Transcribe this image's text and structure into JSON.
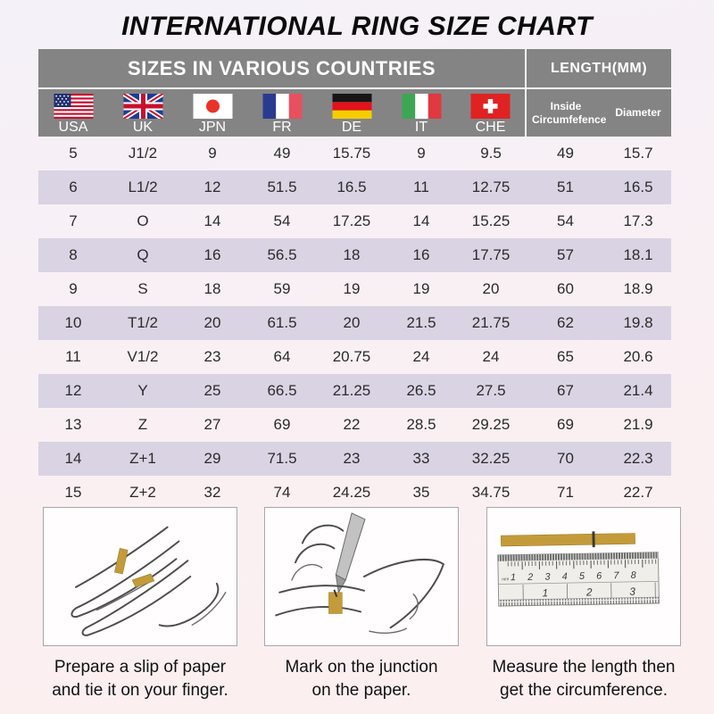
{
  "title": "INTERNATIONAL RING SIZE CHART",
  "table": {
    "section_countries": "SIZES IN VARIOUS COUNTRIES",
    "section_length": "LENGTH(MM)",
    "countries": [
      {
        "code": "USA",
        "flag": "usa"
      },
      {
        "code": "UK",
        "flag": "uk"
      },
      {
        "code": "JPN",
        "flag": "japan"
      },
      {
        "code": "FR",
        "flag": "france"
      },
      {
        "code": "DE",
        "flag": "germany"
      },
      {
        "code": "IT",
        "flag": "italy"
      },
      {
        "code": "CHE",
        "flag": "switzerland"
      }
    ],
    "length_cols": [
      "Inside Circumfefence",
      "Diameter"
    ]
  },
  "chart_data": {
    "type": "table",
    "title": "INTERNATIONAL RING SIZE CHART",
    "columns": [
      "USA",
      "UK",
      "JPN",
      "FR",
      "DE",
      "IT",
      "CHE",
      "Inside Circumfefence",
      "Diameter"
    ],
    "rows": [
      [
        "5",
        "J1/2",
        "9",
        "49",
        "15.75",
        "9",
        "9.5",
        "49",
        "15.7"
      ],
      [
        "6",
        "L1/2",
        "12",
        "51.5",
        "16.5",
        "11",
        "12.75",
        "51",
        "16.5"
      ],
      [
        "7",
        "O",
        "14",
        "54",
        "17.25",
        "14",
        "15.25",
        "54",
        "17.3"
      ],
      [
        "8",
        "Q",
        "16",
        "56.5",
        "18",
        "16",
        "17.75",
        "57",
        "18.1"
      ],
      [
        "9",
        "S",
        "18",
        "59",
        "19",
        "19",
        "20",
        "60",
        "18.9"
      ],
      [
        "10",
        "T1/2",
        "20",
        "61.5",
        "20",
        "21.5",
        "21.75",
        "62",
        "19.8"
      ],
      [
        "11",
        "V1/2",
        "23",
        "64",
        "20.75",
        "24",
        "24",
        "65",
        "20.6"
      ],
      [
        "12",
        "Y",
        "25",
        "66.5",
        "21.25",
        "26.5",
        "27.5",
        "67",
        "21.4"
      ],
      [
        "13",
        "Z",
        "27",
        "69",
        "22",
        "28.5",
        "29.25",
        "69",
        "21.9"
      ],
      [
        "14",
        "Z+1",
        "29",
        "71.5",
        "23",
        "33",
        "32.25",
        "70",
        "22.3"
      ],
      [
        "15",
        "Z+2",
        "32",
        "74",
        "24.25",
        "35",
        "34.75",
        "71",
        "22.7"
      ]
    ]
  },
  "instructions": [
    {
      "lines": [
        "Prepare a slip of paper",
        "and tie it on your finger."
      ]
    },
    {
      "lines": [
        "Mark on the junction",
        "on the paper."
      ]
    },
    {
      "lines": [
        "Measure the length then",
        "get the circumference."
      ]
    }
  ],
  "ruler": {
    "unit_label": "mm",
    "top_numbers": [
      "1",
      "2",
      "3",
      "4",
      "5",
      "6",
      "7",
      "8"
    ],
    "bottom_numbers": [
      "1",
      "2",
      "3"
    ]
  },
  "colors": {
    "header_gray": "#848484",
    "row_stripe": "#d9d3e3",
    "paper_gold": "#c49b3a",
    "page_bg_top": "#f4f1f8",
    "page_bg_bottom": "#fcefef"
  }
}
